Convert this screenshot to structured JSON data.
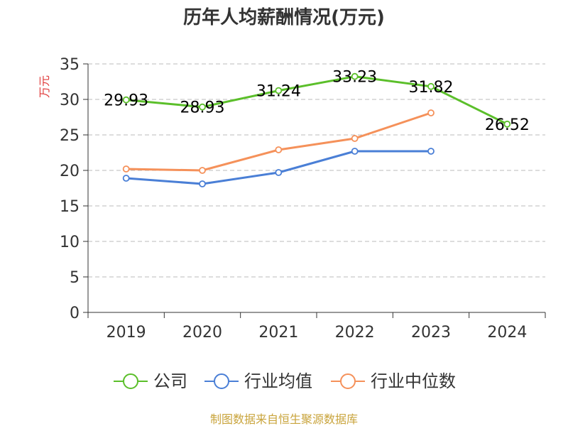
{
  "colors": {
    "company": "#5bbf2a",
    "industry_avg": "#4a7fd6",
    "industry_median": "#f5915a",
    "ylabel": "#e03c3c",
    "source": "#c9a43c",
    "grid": "#bbbbbb",
    "axis": "#333333"
  },
  "source": "制图数据来自恒生聚源数据库",
  "chart_data": {
    "type": "line",
    "title": "历年人均薪酬情况(万元)",
    "ylabel": "万元",
    "xlabel": "",
    "categories": [
      "2019",
      "2020",
      "2021",
      "2022",
      "2023",
      "2024"
    ],
    "ylim": [
      0,
      35
    ],
    "yticks": [
      0,
      5,
      10,
      15,
      20,
      25,
      30,
      35
    ],
    "grid": true,
    "legend_position": "bottom",
    "series": [
      {
        "name": "公司",
        "color": "#5bbf2a",
        "values": [
          29.93,
          28.93,
          31.24,
          33.23,
          31.82,
          26.52
        ],
        "data_labels": [
          "29.93",
          "28.93",
          "31.24",
          "33.23",
          "31.82",
          "26.52"
        ]
      },
      {
        "name": "行业均值",
        "color": "#4a7fd6",
        "values": [
          18.9,
          18.1,
          19.7,
          22.7,
          22.7,
          null
        ]
      },
      {
        "name": "行业中位数",
        "color": "#f5915a",
        "values": [
          20.2,
          20.0,
          22.9,
          24.5,
          28.1,
          null
        ]
      }
    ]
  }
}
